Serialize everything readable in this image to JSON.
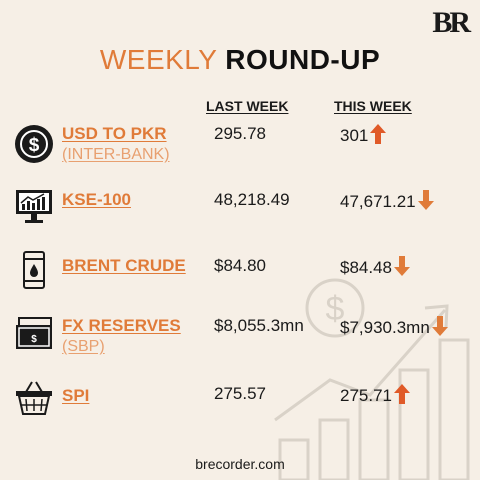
{
  "brand": {
    "logo_text": "BR"
  },
  "header": {
    "title_light": "WEEKLY",
    "title_bold": "ROUND-UP"
  },
  "columns": {
    "last_week": "LAST WEEK",
    "this_week": "THIS WEEK"
  },
  "rows": [
    {
      "label": "USD TO PKR",
      "sub": "(INTER-BANK)",
      "last": "295.78",
      "this": "301",
      "trend": "up",
      "icon": "dollar-coin-icon"
    },
    {
      "label": "KSE-100",
      "sub": "",
      "last": "48,218.49",
      "this": "47,671.21",
      "trend": "down",
      "icon": "stock-monitor-icon"
    },
    {
      "label": "BRENT CRUDE",
      "sub": "",
      "last": "$84.80",
      "this": "$84.48",
      "trend": "down",
      "icon": "oil-barrel-icon"
    },
    {
      "label": "FX RESERVES",
      "sub": "(SBP)",
      "last": "$8,055.3mn",
      "this": "$7,930.3mn",
      "trend": "down",
      "icon": "banknote-icon"
    },
    {
      "label": "SPI",
      "sub": "",
      "last": "275.57",
      "this": "275.71",
      "trend": "up",
      "icon": "shopping-basket-icon"
    }
  ],
  "colors": {
    "accent": "#e07b39",
    "background": "#f6efe6"
  },
  "footer": {
    "site": "brecorder.com"
  }
}
